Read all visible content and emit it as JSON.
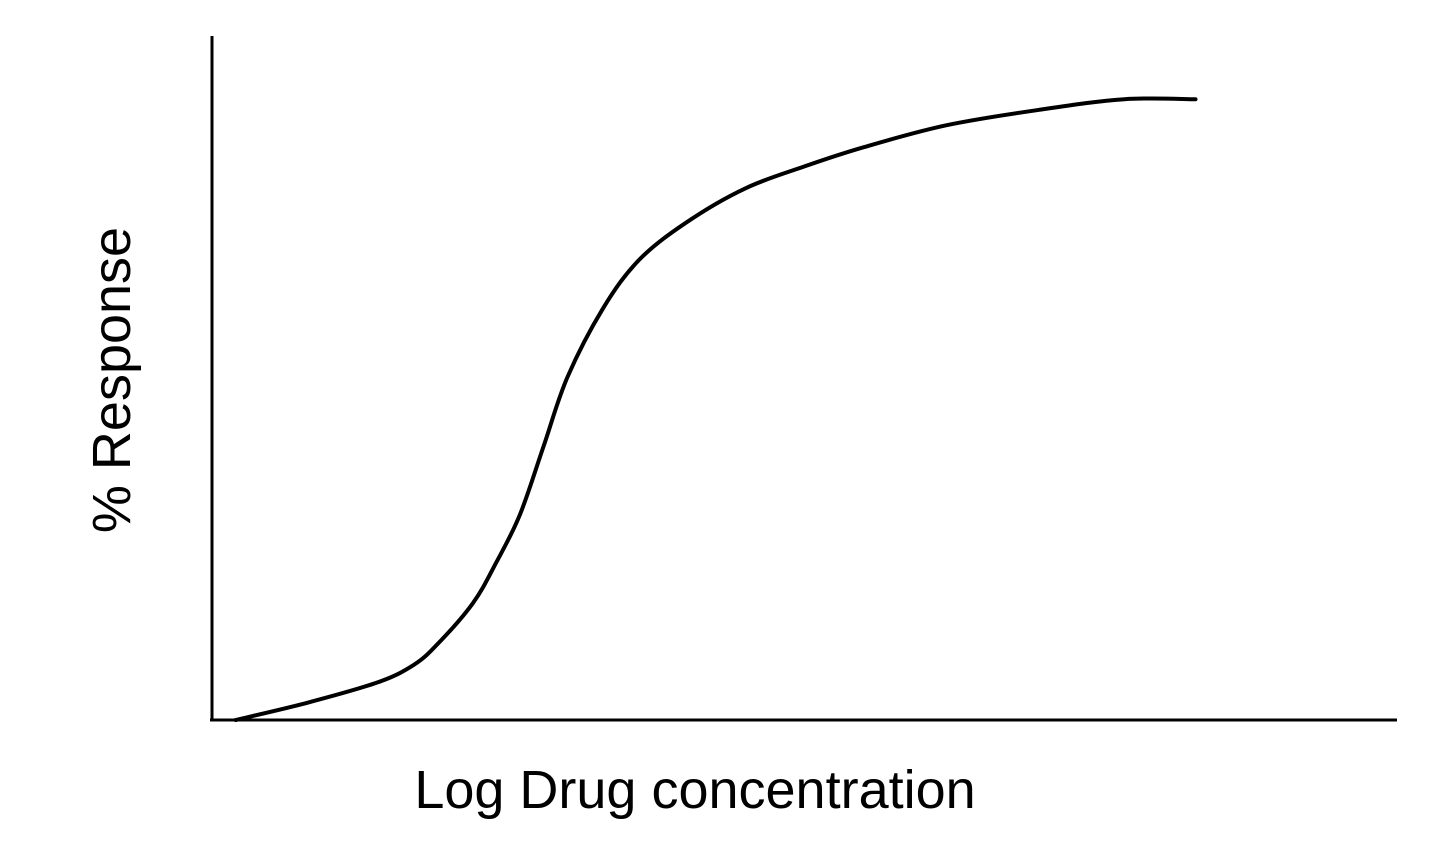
{
  "chart_data": {
    "type": "line",
    "title": "",
    "xlabel": "Log Drug concentration",
    "ylabel": "% Response",
    "xlim": [
      0,
      100
    ],
    "ylim": [
      0,
      100
    ],
    "grid": false,
    "legend": "none",
    "line_color": "#000000",
    "series": [
      {
        "x": [
          2,
          8,
          14,
          17,
          19,
          22,
          24,
          26,
          28,
          30,
          33,
          36,
          40,
          45,
          50,
          55,
          62,
          70,
          77,
          83
        ],
        "y": [
          0,
          2.5,
          5.5,
          8,
          11,
          17,
          23,
          30,
          40,
          50,
          60,
          67,
          72.5,
          77.5,
          80.7,
          83.5,
          86.7,
          89,
          90.5,
          90.5
        ]
      }
    ]
  }
}
